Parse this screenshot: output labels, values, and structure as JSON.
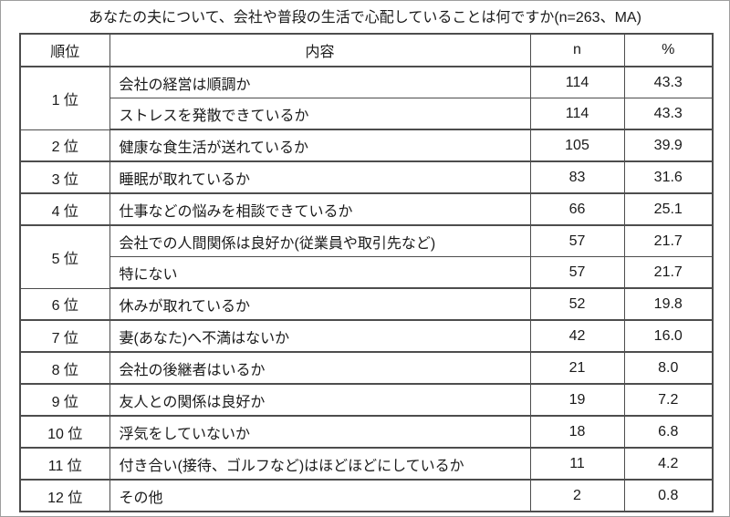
{
  "window": {
    "background": "#ffffff",
    "frame_border_color": "#9e9e9e"
  },
  "title": "あなたの夫について、会社や普段の生活で心配していることは何ですか(n=263、MA)",
  "table": {
    "border_color": "#4d4d4d",
    "text_color": "#1a1a1a",
    "headers": {
      "rank": "順位",
      "content": "内容",
      "n": "n",
      "pct": "%"
    },
    "rows": [
      {
        "rank": "1 位",
        "content": "会社の経営は順調か",
        "n": "114",
        "pct": "43.3"
      },
      {
        "rank": "",
        "content": "ストレスを発散できているか",
        "n": "114",
        "pct": "43.3"
      },
      {
        "rank": "2 位",
        "content": "健康な食生活が送れているか",
        "n": "105",
        "pct": "39.9"
      },
      {
        "rank": "3 位",
        "content": "睡眠が取れているか",
        "n": "83",
        "pct": "31.6"
      },
      {
        "rank": "4 位",
        "content": "仕事などの悩みを相談できているか",
        "n": "66",
        "pct": "25.1"
      },
      {
        "rank": "5 位",
        "content": "会社での人間関係は良好か(従業員や取引先など)",
        "n": "57",
        "pct": "21.7"
      },
      {
        "rank": "",
        "content": "特にない",
        "n": "57",
        "pct": "21.7"
      },
      {
        "rank": "6 位",
        "content": "休みが取れているか",
        "n": "52",
        "pct": "19.8"
      },
      {
        "rank": "7 位",
        "content": "妻(あなた)へ不満はないか",
        "n": "42",
        "pct": "16.0"
      },
      {
        "rank": "8 位",
        "content": "会社の後継者はいるか",
        "n": "21",
        "pct": "8.0"
      },
      {
        "rank": "9 位",
        "content": "友人との関係は良好か",
        "n": "19",
        "pct": "7.2"
      },
      {
        "rank": "10 位",
        "content": "浮気をしていないか",
        "n": "18",
        "pct": "6.8"
      },
      {
        "rank": "11 位",
        "content": "付き合い(接待、ゴルフなど)はほどほどにしているか",
        "n": "11",
        "pct": "4.2"
      },
      {
        "rank": "12 位",
        "content": "その他",
        "n": "2",
        "pct": "0.8"
      }
    ]
  },
  "chart_data": {
    "type": "table",
    "title": "あなたの夫について、会社や普段の生活で心配していることは何ですか(n=263、MA)",
    "columns": [
      "順位",
      "内容",
      "n",
      "%"
    ],
    "rows": [
      {
        "rank": 1,
        "content": "会社の経営は順調か",
        "n": 114,
        "pct": 43.3
      },
      {
        "rank": 1,
        "content": "ストレスを発散できているか",
        "n": 114,
        "pct": 43.3
      },
      {
        "rank": 2,
        "content": "健康な食生活が送れているか",
        "n": 105,
        "pct": 39.9
      },
      {
        "rank": 3,
        "content": "睡眠が取れているか",
        "n": 83,
        "pct": 31.6
      },
      {
        "rank": 4,
        "content": "仕事などの悩みを相談できているか",
        "n": 66,
        "pct": 25.1
      },
      {
        "rank": 5,
        "content": "会社での人間関係は良好か(従業員や取引先など)",
        "n": 57,
        "pct": 21.7
      },
      {
        "rank": 5,
        "content": "特にない",
        "n": 57,
        "pct": 21.7
      },
      {
        "rank": 6,
        "content": "休みが取れているか",
        "n": 52,
        "pct": 19.8
      },
      {
        "rank": 7,
        "content": "妻(あなた)へ不満はないか",
        "n": 42,
        "pct": 16.0
      },
      {
        "rank": 8,
        "content": "会社の後継者はいるか",
        "n": 21,
        "pct": 8.0
      },
      {
        "rank": 9,
        "content": "友人との関係は良好か",
        "n": 19,
        "pct": 7.2
      },
      {
        "rank": 10,
        "content": "浮気をしていないか",
        "n": 18,
        "pct": 6.8
      },
      {
        "rank": 11,
        "content": "付き合い(接待、ゴルフなど)はほどほどにしているか",
        "n": 11,
        "pct": 4.2
      },
      {
        "rank": 12,
        "content": "その他",
        "n": 2,
        "pct": 0.8
      }
    ]
  }
}
